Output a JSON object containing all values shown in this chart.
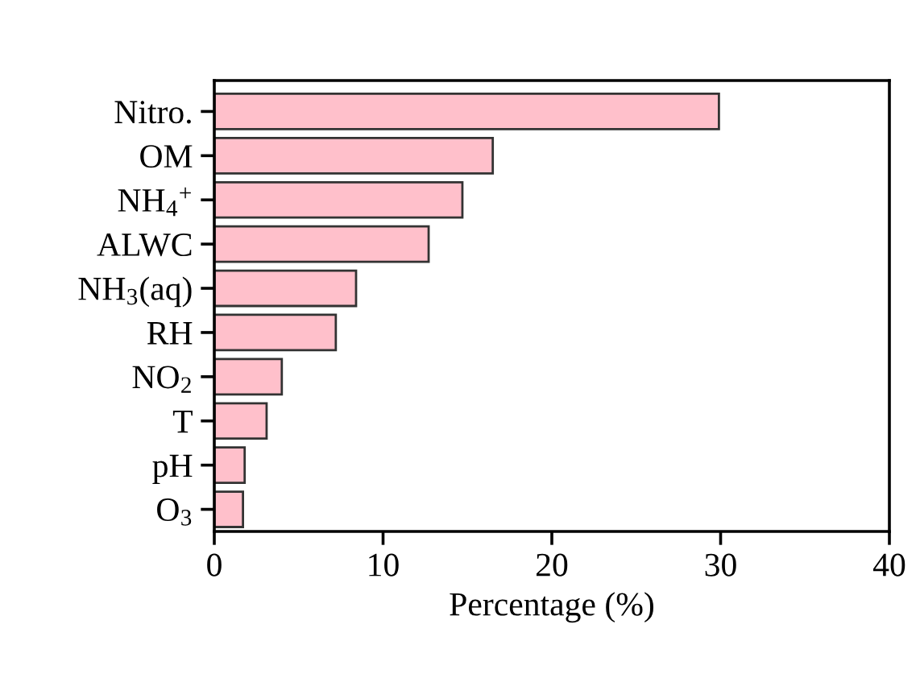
{
  "chart_data": {
    "type": "bar",
    "orientation": "horizontal",
    "xlabel": "Percentage (%)",
    "categories": [
      "Nitro.",
      "OM",
      "NH$_{4}$$^{+}$",
      "ALWC",
      "NH$_{3}$(aq)",
      "RH",
      "NO$_{2}$",
      "T",
      "pH",
      "O$_{3}$"
    ],
    "values": [
      29.9,
      16.5,
      14.7,
      12.7,
      8.4,
      7.2,
      4.0,
      3.1,
      1.8,
      1.7
    ],
    "color": "#ffc0cb",
    "xlim": [
      0,
      40
    ],
    "xticks": [
      0,
      10,
      20,
      30,
      40
    ],
    "grid": false
  }
}
